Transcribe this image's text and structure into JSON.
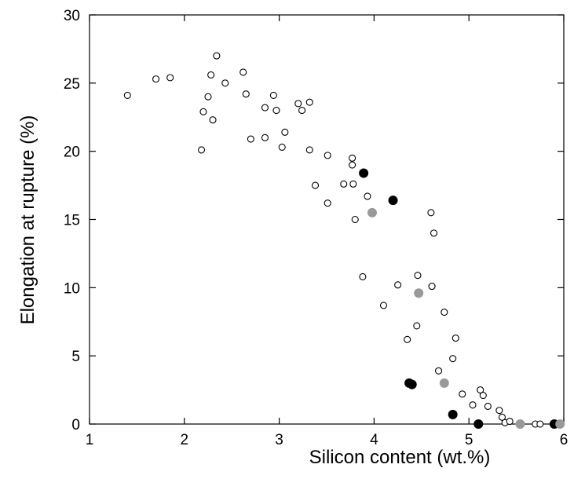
{
  "chart_data": {
    "type": "scatter",
    "title": "",
    "xlabel": "Silicon content (wt.%)",
    "ylabel": "Elongation at rupture (%)",
    "xlim": [
      1,
      6
    ],
    "ylim": [
      0,
      30
    ],
    "xticks": [
      1,
      2,
      3,
      4,
      5,
      6
    ],
    "yticks": [
      0,
      5,
      10,
      15,
      20,
      25,
      30
    ],
    "grid": false,
    "series": [
      {
        "marker": "open-circle",
        "color": "#000000",
        "fill": "#ffffff",
        "x": [
          1.4,
          1.7,
          1.85,
          2.18,
          2.2,
          2.25,
          2.28,
          2.3,
          2.34,
          2.43,
          2.62,
          2.65,
          2.7,
          2.85,
          2.85,
          2.94,
          2.97,
          3.03,
          3.06,
          3.2,
          3.24,
          3.32,
          3.32,
          3.38,
          3.51,
          3.51,
          3.68,
          3.77,
          3.77,
          3.78,
          3.8,
          3.88,
          3.93,
          4.1,
          4.25,
          4.35,
          4.45,
          4.46,
          4.6,
          4.61,
          4.63,
          4.68,
          4.74,
          4.83,
          4.86,
          4.93,
          5.04,
          5.12,
          5.15,
          5.2,
          5.32,
          5.35,
          5.38,
          5.43,
          5.7,
          5.75,
          5.96
        ],
        "y": [
          24.1,
          25.3,
          25.4,
          20.1,
          22.9,
          24.0,
          25.6,
          22.3,
          27.0,
          25.0,
          25.8,
          24.2,
          20.9,
          21.0,
          23.2,
          24.1,
          23.0,
          20.3,
          21.4,
          23.5,
          23.0,
          23.6,
          20.1,
          17.5,
          16.2,
          19.7,
          17.6,
          19.5,
          19.0,
          17.6,
          15.0,
          10.8,
          16.7,
          8.7,
          10.2,
          6.2,
          7.2,
          10.9,
          15.5,
          10.1,
          14.0,
          3.9,
          8.2,
          4.8,
          6.3,
          2.2,
          1.4,
          2.5,
          2.1,
          1.3,
          1.0,
          0.5,
          0.1,
          0.2,
          0.0,
          0.0,
          0.0
        ]
      },
      {
        "marker": "filled-circle",
        "color": "#000000",
        "x": [
          3.89,
          4.2,
          4.37,
          4.4,
          4.83,
          5.1,
          5.9
        ],
        "y": [
          18.4,
          16.4,
          3.0,
          2.9,
          0.7,
          0.0,
          0.0
        ]
      },
      {
        "marker": "filled-circle",
        "color": "#999999",
        "x": [
          3.98,
          4.47,
          4.74,
          5.54,
          5.96
        ],
        "y": [
          15.5,
          9.6,
          3.0,
          0.0,
          0.0
        ]
      }
    ]
  }
}
